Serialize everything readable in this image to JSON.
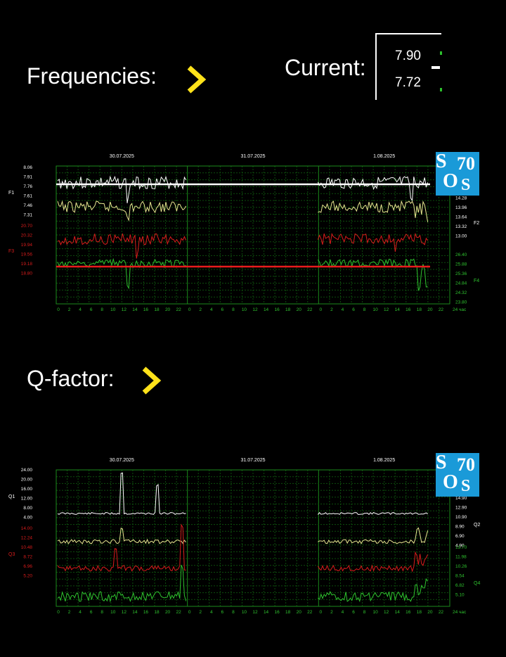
{
  "headings": {
    "frequencies": "Frequencies:",
    "qfactor": "Q-factor:",
    "current": "Current:"
  },
  "current": {
    "values": [
      "7.90",
      "7.72"
    ]
  },
  "badge": {
    "s1": "S",
    "n": "70",
    "o": "O",
    "s2": "S"
  },
  "colors": {
    "accent": "#ffe21a",
    "grid": "#0d5c0d",
    "f1": "#ffffff",
    "f2": "#e8e890",
    "f3": "#d81c1c",
    "f4": "#2ec22e",
    "badge": "#1a9ad8"
  },
  "icons": [
    "chevron-right-icon"
  ],
  "freq_chart": {
    "dates": [
      "30.07.2025",
      "31.07.2025",
      "1.08.2025"
    ],
    "x_ticks": [
      "0",
      "2",
      "4",
      "6",
      "8",
      "10",
      "12",
      "14",
      "16",
      "18",
      "20",
      "22"
    ],
    "x_tail": "24 час",
    "series_labels": {
      "left_top": "F1",
      "left_bottom": "F3",
      "right_top": "F2",
      "right_bottom": "F4"
    },
    "y_left_top": [
      "8.06",
      "7.91",
      "7.76",
      "7.61",
      "7.46",
      "7.31"
    ],
    "y_left_bottom": [
      "20.70",
      "20.32",
      "19.94",
      "19.56",
      "19.18",
      "18.80"
    ],
    "y_right_top": [
      "14.60",
      "14.28",
      "13.96",
      "13.64",
      "13.32",
      "13.00"
    ],
    "y_right_bottom": [
      "26.40",
      "25.88",
      "25.36",
      "24.84",
      "24.32",
      "23.80"
    ]
  },
  "q_chart": {
    "dates": [
      "30.07.2025",
      "31.07.2025",
      "1.08.2025"
    ],
    "x_ticks": [
      "0",
      "2",
      "4",
      "6",
      "8",
      "10",
      "12",
      "14",
      "16",
      "18",
      "20",
      "22"
    ],
    "x_tail": "24 час",
    "series_labels": {
      "left_top": "Q1",
      "left_bottom": "Q3",
      "right_top": "Q2",
      "right_bottom": "Q4"
    },
    "y_left_top": [
      "24.00",
      "20.00",
      "16.00",
      "12.00",
      "8.00",
      "4.00"
    ],
    "y_left_bottom": [
      "14.00",
      "12.24",
      "10.48",
      "8.72",
      "6.96",
      "5.20"
    ],
    "y_right_top": [
      "14.90",
      "12.90",
      "10.90",
      "8.90",
      "6.90",
      "4.90"
    ],
    "y_right_bottom": [
      "13.70",
      "11.98",
      "10.26",
      "8.54",
      "6.82",
      "5.10"
    ]
  }
}
